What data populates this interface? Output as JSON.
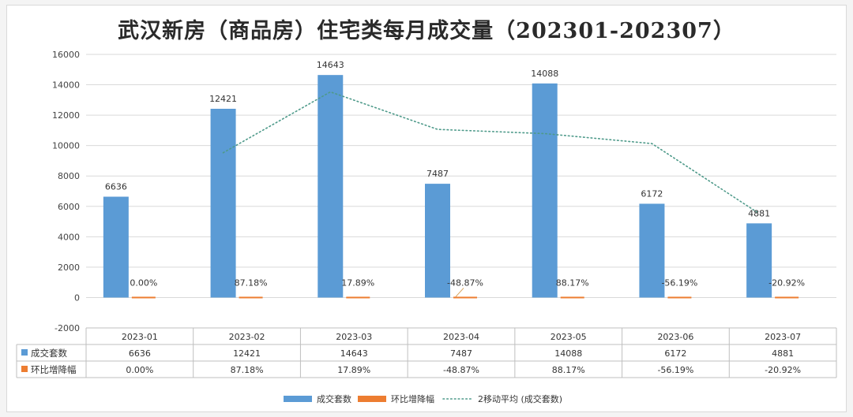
{
  "chart_data": {
    "type": "bar",
    "title": "武汉新房（商品房）住宅类每月成交量（202301-202307）",
    "categories": [
      "2023-01",
      "2023-02",
      "2023-03",
      "2023-04",
      "2023-05",
      "2023-06",
      "2023-07"
    ],
    "series": [
      {
        "name": "成交套数",
        "values": [
          6636,
          12421,
          14643,
          7487,
          14088,
          6172,
          4881
        ],
        "color": "#5b9bd5"
      },
      {
        "name": "环比增降幅",
        "values": [
          0.0,
          87.18,
          17.89,
          -48.87,
          88.17,
          -56.19,
          -20.92
        ],
        "display": [
          "0.00%",
          "87.18%",
          "17.89%",
          "-48.87%",
          "88.17%",
          "-56.19%",
          "-20.92%"
        ],
        "color": "#ed7d31"
      }
    ],
    "trendline": {
      "name": "2移动平均 (成交套数)",
      "type": "moving-average",
      "period": 2,
      "color": "#4e9a8a"
    },
    "yticks": [
      -2000,
      0,
      2000,
      4000,
      6000,
      8000,
      10000,
      12000,
      14000,
      16000
    ],
    "ylim": [
      -2000,
      16000
    ],
    "grid": true,
    "legend_position": "bottom",
    "data_table": true
  }
}
